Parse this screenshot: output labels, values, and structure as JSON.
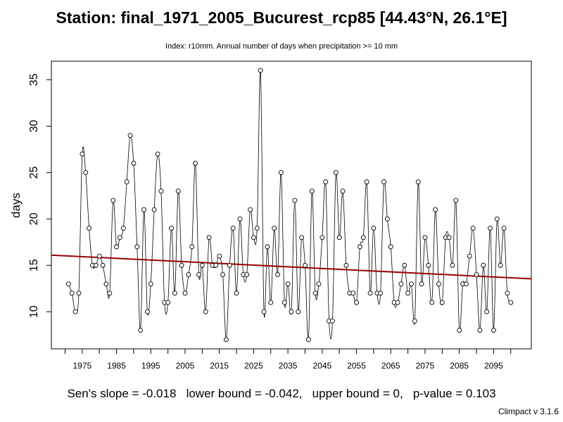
{
  "title": "Station: final_1971_2005_Bucurest_rcp85 [44.43°N, 26.1°E]",
  "subtitle": "Index: r10mm. Annual number of days when precipitation >= 10 mm",
  "stats": "Sen's slope = -0.018   lower bound = -0.042,   upper bound = 0,   p-value = 0.103",
  "credit": "Climpact v 3.1.6",
  "colors": {
    "series": "#000000",
    "trend": "#990000",
    "background": "#ffffff"
  },
  "chart_data": {
    "type": "line",
    "title": "Station: final_1971_2005_Bucurest_rcp85 [44.43°N, 26.1°E]",
    "xlabel": "",
    "ylabel": "days",
    "xlim": [
      1966,
      2106
    ],
    "ylim": [
      6,
      37
    ],
    "xticks": [
      1970,
      1975,
      1980,
      1985,
      1990,
      1995,
      2000,
      2005,
      2010,
      2015,
      2020,
      2025,
      2030,
      2035,
      2040,
      2045,
      2050,
      2055,
      2060,
      2065,
      2070,
      2075,
      2080,
      2085,
      2090,
      2095,
      2100
    ],
    "xtick_labels": [
      "1975",
      "1985",
      "1995",
      "2005",
      "2015",
      "2025",
      "2035",
      "2045",
      "2055",
      "2065",
      "2075",
      "2085",
      "2095"
    ],
    "yticks": [
      10,
      15,
      20,
      25,
      30,
      35
    ],
    "grid": false,
    "series": [
      {
        "x": [
          1971,
          1972,
          1973,
          1974,
          1975,
          1976,
          1977,
          1978,
          1979,
          1980,
          1981,
          1982,
          1983,
          1984,
          1985,
          1986,
          1987,
          1988,
          1989,
          1990,
          1991,
          1992,
          1993,
          1994,
          1995,
          1996,
          1997,
          1998,
          1999,
          2000,
          2001,
          2002,
          2003,
          2004,
          2005,
          2006,
          2007,
          2008,
          2009,
          2010,
          2011,
          2012,
          2013,
          2014,
          2015,
          2016,
          2017,
          2018,
          2019,
          2020,
          2021,
          2022,
          2023,
          2024,
          2025,
          2026,
          2027,
          2028,
          2029,
          2030,
          2031,
          2032,
          2033,
          2034,
          2035,
          2036,
          2037,
          2038,
          2039,
          2040,
          2041,
          2042,
          2043,
          2044,
          2045,
          2046,
          2047,
          2048,
          2049,
          2050,
          2051,
          2052,
          2053,
          2054,
          2055,
          2056,
          2057,
          2058,
          2059,
          2060,
          2061,
          2062,
          2063,
          2064,
          2065,
          2066,
          2067,
          2068,
          2069,
          2070,
          2071,
          2072,
          2073,
          2074,
          2075,
          2076,
          2077,
          2078,
          2079,
          2080,
          2081,
          2082,
          2083,
          2084,
          2085,
          2086,
          2087,
          2088,
          2089,
          2090,
          2091,
          2092,
          2093,
          2094,
          2095,
          2096,
          2097,
          2098,
          2099,
          2100
        ],
        "values": [
          13,
          12,
          10,
          12,
          27,
          25,
          19,
          15,
          15,
          16,
          15,
          13,
          12,
          22,
          17,
          18,
          19,
          24,
          29,
          26,
          17,
          8,
          21,
          10,
          13,
          21,
          27,
          23,
          11,
          11,
          19,
          12,
          23,
          15,
          12,
          14,
          17,
          26,
          14,
          15,
          10,
          18,
          15,
          15,
          16,
          14,
          7,
          15,
          19,
          12,
          20,
          14,
          14,
          21,
          18,
          19,
          36,
          10,
          17,
          11,
          19,
          14,
          25,
          11,
          13,
          10,
          22,
          10,
          18,
          15,
          7,
          23,
          12,
          13,
          18,
          24,
          9,
          9,
          25,
          18,
          23,
          15,
          12,
          12,
          11,
          17,
          18,
          24,
          12,
          19,
          12,
          12,
          24,
          20,
          17,
          11,
          11,
          13,
          15,
          12,
          13,
          9,
          24,
          13,
          18,
          15,
          11,
          21,
          13,
          11,
          18,
          18,
          15,
          22,
          8,
          13,
          13,
          16,
          19,
          14,
          8,
          15,
          10,
          19,
          8,
          20,
          15,
          19,
          12,
          11
        ]
      }
    ],
    "trend": {
      "x": [
        1966,
        2106
      ],
      "y": [
        16.1,
        13.55
      ]
    }
  }
}
